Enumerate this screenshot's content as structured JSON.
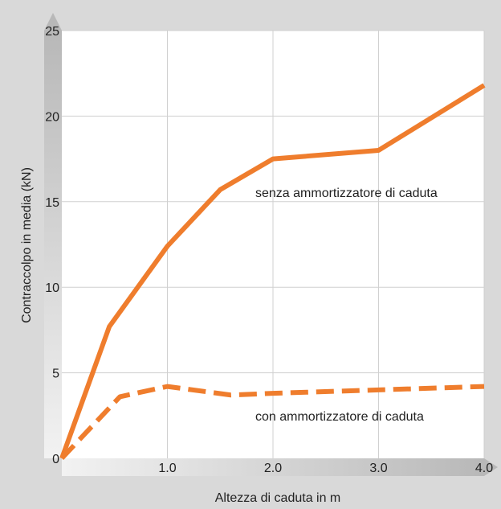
{
  "chart_data": {
    "type": "line",
    "title": "",
    "xlabel": "Altezza di caduta in m",
    "ylabel": "Contraccolpo in media (kN)",
    "xlim": [
      0,
      4.0
    ],
    "ylim": [
      0,
      25
    ],
    "x_ticks": [
      1.0,
      2.0,
      3.0,
      4.0
    ],
    "x_tick_labels": [
      "1.0",
      "2.0",
      "3.0",
      "4.0"
    ],
    "y_ticks": [
      0,
      5,
      10,
      15,
      20,
      25
    ],
    "y_tick_labels": [
      "0",
      "5",
      "10",
      "15",
      "20",
      "25"
    ],
    "grid": true,
    "series": [
      {
        "name": "senza ammortizzatore di caduta",
        "style": "solid",
        "color": "#ef7d2d",
        "x": [
          0,
          0.45,
          1.0,
          1.5,
          2.0,
          3.0,
          4.0
        ],
        "y": [
          0,
          7.7,
          12.4,
          15.7,
          17.5,
          18.0,
          21.8
        ]
      },
      {
        "name": "con ammortizzatore di caduta",
        "style": "dashed",
        "color": "#ef7d2d",
        "x": [
          0,
          0.55,
          1.0,
          1.6,
          2.0,
          3.0,
          4.0
        ],
        "y": [
          0,
          3.6,
          4.2,
          3.7,
          3.8,
          4.0,
          4.2
        ]
      }
    ],
    "annotations": [
      {
        "text": "senza ammortizzatore di caduta",
        "series_index": 0
      },
      {
        "text": "con ammortizzatore di caduta",
        "series_index": 1
      }
    ]
  },
  "colors": {
    "background": "#d9d9d9",
    "plot_background": "#ffffff",
    "gridline": "#d0d0d0",
    "axis_arrow": "#bdbdbd",
    "series": "#ef7d2d"
  }
}
